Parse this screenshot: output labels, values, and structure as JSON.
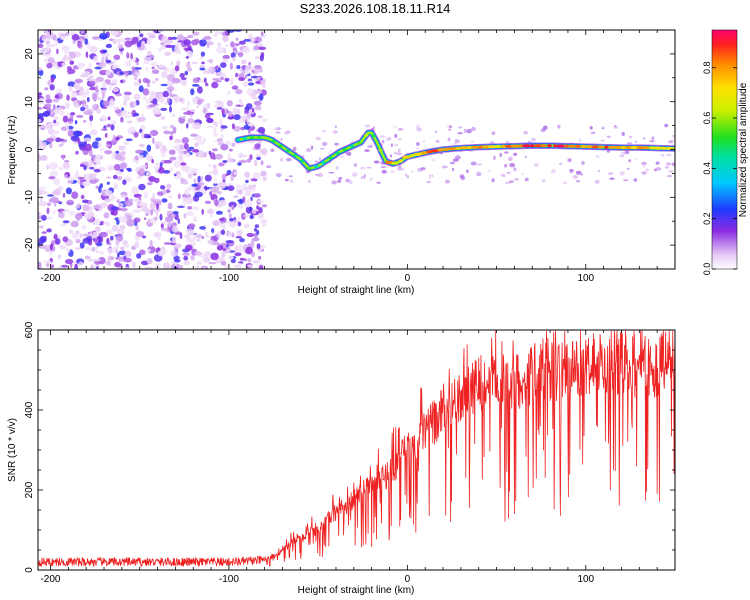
{
  "title": "S233.2026.108.18.11.R14",
  "chart_data": [
    {
      "type": "heatmap",
      "xlabel": "Height of straight line (km)",
      "ylabel": "Frequency (Hz)",
      "xlim": [
        -207,
        150
      ],
      "ylim": [
        -25,
        25
      ],
      "x_ticks": [
        -200,
        -100,
        0,
        100
      ],
      "x_tick_labels": [
        "-200",
        "-100",
        "0",
        "100"
      ],
      "y_ticks": [
        -20,
        -10,
        0,
        10,
        20
      ],
      "y_tick_labels": [
        "-20",
        "-10",
        "0",
        "10",
        "20"
      ],
      "colorbar": {
        "label": "Normalized spectral amplitude",
        "range": [
          0,
          0.95
        ],
        "ticks": [
          0,
          0.2,
          0.4,
          0.6,
          0.8
        ],
        "tick_labels": [
          "0.0",
          "0.2",
          "0.4",
          "0.6",
          "0.8"
        ]
      },
      "noise_region_x": [
        -207,
        -80
      ],
      "ridge": {
        "x": [
          -95,
          -88,
          -80,
          -76,
          -72,
          -66,
          -60,
          -55,
          -50,
          -44,
          -38,
          -32,
          -26,
          -22,
          -20,
          -17,
          -14,
          -12,
          -8,
          -4,
          0,
          6,
          12,
          20,
          30,
          40,
          50,
          60,
          70,
          80,
          90,
          100,
          110,
          120,
          130,
          140,
          150
        ],
        "freq": [
          2,
          2.5,
          2.5,
          2,
          1,
          -0.5,
          -2,
          -4,
          -3.5,
          -2,
          -0.5,
          0.5,
          1.5,
          3.5,
          3.5,
          1.5,
          -1,
          -2.5,
          -3,
          -2.5,
          -1.5,
          -1,
          -0.5,
          0,
          0.3,
          0.5,
          0.6,
          0.7,
          0.8,
          0.8,
          0.7,
          0.6,
          0.5,
          0.4,
          0.4,
          0.3,
          0.2
        ],
        "amplitude": [
          0.45,
          0.5,
          0.55,
          0.55,
          0.5,
          0.45,
          0.45,
          0.5,
          0.45,
          0.45,
          0.5,
          0.5,
          0.55,
          0.6,
          0.55,
          0.5,
          0.6,
          0.85,
          0.7,
          0.75,
          0.7,
          0.75,
          0.8,
          0.85,
          0.75,
          0.8,
          0.75,
          0.8,
          0.9,
          0.85,
          0.9,
          0.8,
          0.85,
          0.8,
          0.75,
          0.7,
          0.65
        ]
      }
    },
    {
      "type": "line",
      "xlabel": "Height of straight line (km)",
      "ylabel": "SNR (10 * v/v)",
      "xlim": [
        -207,
        150
      ],
      "ylim": [
        0,
        600
      ],
      "x_ticks": [
        -200,
        -100,
        0,
        100
      ],
      "x_tick_labels": [
        "-200",
        "-100",
        "0",
        "100"
      ],
      "y_ticks": [
        0,
        200,
        400,
        600
      ],
      "y_tick_labels": [
        "0",
        "200",
        "400",
        "600"
      ],
      "series": [
        {
          "name": "SNR",
          "color": "#ee2222",
          "x": [
            -207,
            -200,
            -180,
            -160,
            -140,
            -120,
            -100,
            -90,
            -80,
            -75,
            -70,
            -65,
            -60,
            -55,
            -50,
            -45,
            -40,
            -35,
            -30,
            -25,
            -20,
            -15,
            -10,
            -5,
            0,
            5,
            10,
            15,
            20,
            25,
            30,
            35,
            40,
            50,
            60,
            70,
            80,
            90,
            100,
            110,
            120,
            130,
            140,
            150
          ],
          "values": [
            20,
            20,
            20,
            20,
            20,
            20,
            20,
            22,
            25,
            35,
            50,
            70,
            80,
            95,
            110,
            125,
            150,
            165,
            180,
            200,
            215,
            230,
            255,
            280,
            310,
            330,
            360,
            380,
            410,
            430,
            455,
            470,
            480,
            480,
            485,
            500,
            510,
            515,
            520,
            525,
            530,
            520,
            525,
            530
          ]
        }
      ]
    }
  ]
}
